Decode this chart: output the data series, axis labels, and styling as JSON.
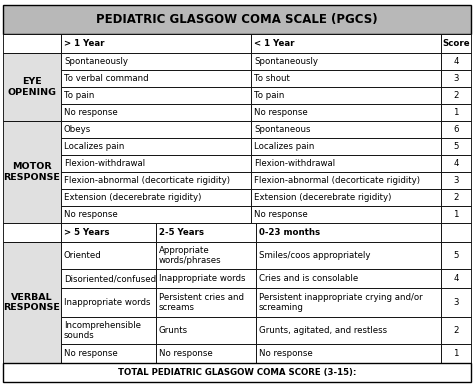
{
  "title": "PEDIATRIC GLASGOW COMA SCALE (PGCS)",
  "footer": "TOTAL PEDIATRIC GLASGOW COMA SCORE (3-15):",
  "header_bg": "#b8b8b8",
  "white_bg": "#ffffff",
  "label_bg": "#e0e0e0",
  "title_fontsize": 8.5,
  "cell_fontsize": 6.2,
  "label_fontsize": 6.8,
  "eye_opening_rows": [
    [
      "Spontaneously",
      "Spontaneously",
      "4"
    ],
    [
      "To verbal command",
      "To shout",
      "3"
    ],
    [
      "To pain",
      "To pain",
      "2"
    ],
    [
      "No response",
      "No response",
      "1"
    ]
  ],
  "motor_response_rows": [
    [
      "Obeys",
      "Spontaneous",
      "6"
    ],
    [
      "Localizes pain",
      "Localizes pain",
      "5"
    ],
    [
      "Flexion-withdrawal",
      "Flexion-withdrawal",
      "4"
    ],
    [
      "Flexion-abnormal (decorticate rigidity)",
      "Flexion-abnormal (decorticate rigidity)",
      "3"
    ],
    [
      "Extension (decerebrate rigidity)",
      "Extension (decerebrate rigidity)",
      "2"
    ],
    [
      "No response",
      "No response",
      "1"
    ]
  ],
  "verbal_response_rows": [
    [
      "Oriented",
      "Appropriate\nwords/phrases",
      "Smiles/coos appropriately",
      "5"
    ],
    [
      "Disoriented/confused",
      "Inappropriate words",
      "Cries and is consolable",
      "4"
    ],
    [
      "Inappropriate words",
      "Persistent cries and\nscreams",
      "Persistent inappropriate crying and/or\nscreaming",
      "3"
    ],
    [
      "Incomprehensible\nsounds",
      "Grunts",
      "Grunts, agitated, and restless",
      "2"
    ],
    [
      "No response",
      "No response",
      "No response",
      "1"
    ]
  ]
}
